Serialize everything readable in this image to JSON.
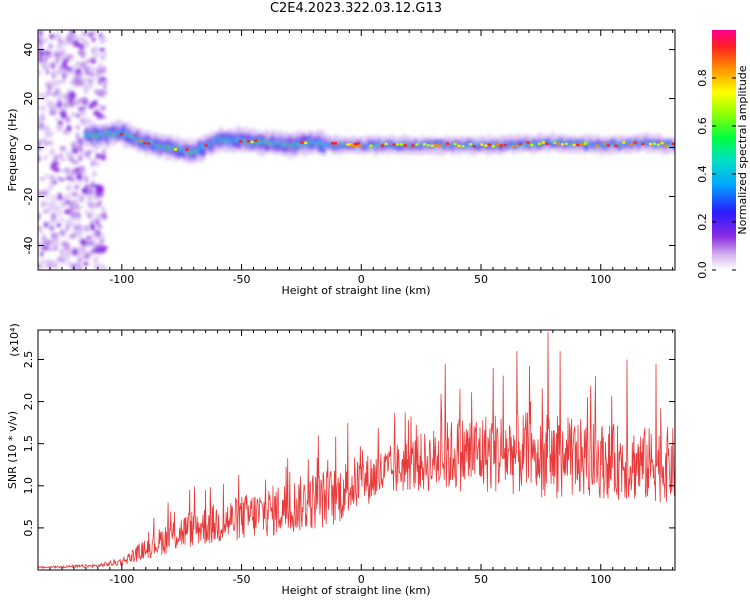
{
  "title": "C2E4.2023.322.03.12.G13",
  "chart_data": [
    {
      "type": "heatmap",
      "xlabel": "Height of straight line (km)",
      "ylabel": "Frequency (Hz)",
      "xlim": [
        -135,
        131
      ],
      "ylim": [
        -50,
        48
      ],
      "x_ticks": [
        -100,
        -50,
        0,
        50,
        100
      ],
      "y_ticks": [
        -40,
        -20,
        0,
        20,
        40
      ],
      "colorbar": {
        "label": "Normalized spectral amplitude",
        "range": [
          0,
          1
        ],
        "ticks": [
          "0.0",
          "0.2",
          "0.4",
          "0.6",
          "0.8"
        ]
      },
      "center_frequency": [
        {
          "x": -110,
          "y": 5
        },
        {
          "x": -100,
          "y": 6
        },
        {
          "x": -90,
          "y": 2
        },
        {
          "x": -80,
          "y": 0
        },
        {
          "x": -70,
          "y": -2
        },
        {
          "x": -60,
          "y": 3
        },
        {
          "x": -50,
          "y": 3
        },
        {
          "x": -40,
          "y": 2
        },
        {
          "x": -30,
          "y": 1
        },
        {
          "x": -20,
          "y": 2
        },
        {
          "x": -10,
          "y": 1
        },
        {
          "x": 0,
          "y": 1
        },
        {
          "x": 20,
          "y": 1
        },
        {
          "x": 40,
          "y": 1
        },
        {
          "x": 60,
          "y": 1
        },
        {
          "x": 80,
          "y": 2
        },
        {
          "x": 100,
          "y": 1
        },
        {
          "x": 120,
          "y": 2
        },
        {
          "x": 130,
          "y": 1
        }
      ]
    },
    {
      "type": "line",
      "xlabel": "Height of straight line (km)",
      "ylabel": "SNR (10 * v/v)",
      "y_multiplier": "(x10⁴)",
      "xlim": [
        -135,
        131
      ],
      "ylim": [
        0,
        2.85
      ],
      "x_ticks": [
        -100,
        -50,
        0,
        50,
        100
      ],
      "y_ticks": [
        "0.5",
        "1.0",
        "1.5",
        "2.0",
        "2.5"
      ],
      "series_color": "#e83a3a",
      "envelope": [
        {
          "x": -135,
          "y": 0.03
        },
        {
          "x": -110,
          "y": 0.05
        },
        {
          "x": -100,
          "y": 0.1
        },
        {
          "x": -90,
          "y": 0.25
        },
        {
          "x": -80,
          "y": 0.4
        },
        {
          "x": -70,
          "y": 0.5
        },
        {
          "x": -60,
          "y": 0.55
        },
        {
          "x": -50,
          "y": 0.62
        },
        {
          "x": -40,
          "y": 0.68
        },
        {
          "x": -30,
          "y": 0.75
        },
        {
          "x": -20,
          "y": 0.82
        },
        {
          "x": -10,
          "y": 0.88
        },
        {
          "x": -5,
          "y": 1.0
        },
        {
          "x": 0,
          "y": 1.05
        },
        {
          "x": 10,
          "y": 1.15
        },
        {
          "x": 20,
          "y": 1.25
        },
        {
          "x": 30,
          "y": 1.3
        },
        {
          "x": 40,
          "y": 1.38
        },
        {
          "x": 60,
          "y": 1.4
        },
        {
          "x": 80,
          "y": 1.35
        },
        {
          "x": 100,
          "y": 1.3
        },
        {
          "x": 120,
          "y": 1.25
        },
        {
          "x": 131,
          "y": 1.25
        }
      ],
      "spread": [
        {
          "x": -135,
          "y": 0.01
        },
        {
          "x": -110,
          "y": 0.02
        },
        {
          "x": -100,
          "y": 0.05
        },
        {
          "x": -90,
          "y": 0.12
        },
        {
          "x": -80,
          "y": 0.2
        },
        {
          "x": -60,
          "y": 0.25
        },
        {
          "x": -40,
          "y": 0.3
        },
        {
          "x": -20,
          "y": 0.35
        },
        {
          "x": -5,
          "y": 0.35
        },
        {
          "x": 0,
          "y": 0.3
        },
        {
          "x": 20,
          "y": 0.32
        },
        {
          "x": 40,
          "y": 0.45
        },
        {
          "x": 60,
          "y": 0.5
        },
        {
          "x": 80,
          "y": 0.5
        },
        {
          "x": 100,
          "y": 0.45
        },
        {
          "x": 131,
          "y": 0.45
        }
      ],
      "peaks": [
        {
          "x": -65,
          "y": 0.95
        },
        {
          "x": -18,
          "y": 1.6
        },
        {
          "x": 35,
          "y": 2.45
        },
        {
          "x": 55,
          "y": 2.4
        },
        {
          "x": 65,
          "y": 2.6
        },
        {
          "x": 78,
          "y": 2.83
        },
        {
          "x": 83,
          "y": 2.6
        },
        {
          "x": 111,
          "y": 2.5
        },
        {
          "x": 123,
          "y": 2.45
        }
      ]
    }
  ]
}
